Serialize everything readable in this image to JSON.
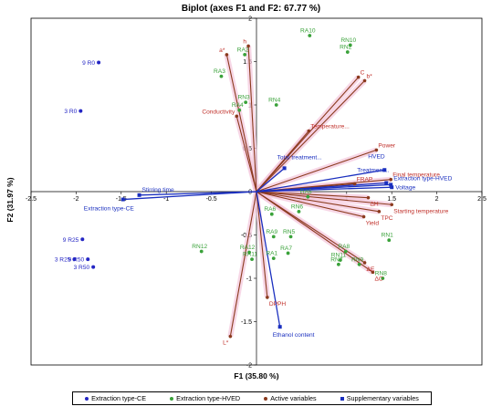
{
  "colors": {
    "ce": "#2426c4",
    "hved": "#3aa23a",
    "active": "#8b3a1e",
    "active_label": "#c0302a",
    "supp": "#1a2fbf",
    "halo": "#f4c6dc"
  },
  "chart_data": {
    "type": "scatter",
    "title": "Biplot (axes F1 and F2: 67.77 %)",
    "xlabel": "F1 (35.80 %)",
    "ylabel": "F2 (31.97 %)",
    "xlim": [
      -2.5,
      2.5
    ],
    "ylim": [
      -2,
      2
    ],
    "xticks": [
      "-2.5",
      "-2",
      "-1.5",
      "-1",
      "-0.5",
      "0",
      "0.5",
      "1",
      "1.5",
      "2",
      "2.5"
    ],
    "yticks": [
      "-2",
      "-1.5",
      "-1",
      "-0.5",
      "0",
      "0.5",
      "1",
      "1.5",
      "2"
    ],
    "grid": false,
    "legend_position": "bottom",
    "legend": [
      "Extraction type-CE",
      "Extraction type-HVED",
      "Active variables",
      "Supplementary variables"
    ],
    "observations_ce": [
      {
        "label": "9 R0",
        "x": -1.75,
        "y": 1.49
      },
      {
        "label": "3 R0",
        "x": -1.95,
        "y": 0.93
      },
      {
        "label": "9 R25",
        "x": -1.93,
        "y": -0.55
      },
      {
        "label": "3 R25",
        "x": -2.02,
        "y": -0.78
      },
      {
        "label": "9 R50",
        "x": -1.87,
        "y": -0.78
      },
      {
        "label": "3 R50",
        "x": -1.81,
        "y": -0.87
      }
    ],
    "observations_hved": [
      {
        "label": "RA10",
        "x": 0.59,
        "y": 1.8
      },
      {
        "label": "RN10",
        "x": 1.04,
        "y": 1.69
      },
      {
        "label": "RN2",
        "x": 1.01,
        "y": 1.61
      },
      {
        "label": "RA2",
        "x": -0.13,
        "y": 1.58
      },
      {
        "label": "RA3",
        "x": -0.39,
        "y": 1.33
      },
      {
        "label": "RN3",
        "x": -0.12,
        "y": 1.03
      },
      {
        "label": "RN4",
        "x": 0.22,
        "y": 1.0
      },
      {
        "label": "RA4",
        "x": -0.19,
        "y": 0.94
      },
      {
        "label": "RN1",
        "x": 1.47,
        "y": -0.56
      },
      {
        "label": "RA6",
        "x": 0.17,
        "y": -0.26
      },
      {
        "label": "RN6",
        "x": 0.47,
        "y": -0.23
      },
      {
        "label": "RA9",
        "x": 0.19,
        "y": -0.52
      },
      {
        "label": "RN5",
        "x": 0.38,
        "y": -0.52
      },
      {
        "label": "RA7",
        "x": 0.35,
        "y": -0.71
      },
      {
        "label": "RA1",
        "x": 0.19,
        "y": -0.77
      },
      {
        "label": "RA8",
        "x": 0.99,
        "y": -0.69
      },
      {
        "label": "RN11",
        "x": 0.93,
        "y": -0.79
      },
      {
        "label": "RN7",
        "x": 0.91,
        "y": -0.84
      },
      {
        "label": "RN9",
        "x": 1.14,
        "y": -0.84
      },
      {
        "label": "RN8",
        "x": 1.4,
        "y": -1.0
      },
      {
        "label": "RN12",
        "x": -0.61,
        "y": -0.69
      },
      {
        "label": "RA11",
        "x": -0.05,
        "y": -0.78
      },
      {
        "label": "RA12",
        "x": -0.08,
        "y": -0.7
      },
      {
        "label": "RA5",
        "x": 0.57,
        "y": -0.06
      }
    ],
    "active_variables": [
      {
        "label": "a*",
        "x": -0.33,
        "y": 1.58
      },
      {
        "label": "h",
        "x": -0.09,
        "y": 1.68
      },
      {
        "label": "Conductivity",
        "x": -0.22,
        "y": 0.87
      },
      {
        "label": "C",
        "x": 1.13,
        "y": 1.32
      },
      {
        "label": "b*",
        "x": 1.2,
        "y": 1.28
      },
      {
        "label": "Temperature...",
        "x": 0.58,
        "y": 0.7
      },
      {
        "label": "Power",
        "x": 1.33,
        "y": 0.48
      },
      {
        "label": "Final temperature",
        "x": 1.49,
        "y": 0.14
      },
      {
        "label": "FRAP",
        "x": 1.09,
        "y": 0.09
      },
      {
        "label": "ΔH",
        "x": 1.24,
        "y": -0.07
      },
      {
        "label": "Starting temperature",
        "x": 1.5,
        "y": -0.15
      },
      {
        "label": "TPC",
        "x": 1.36,
        "y": -0.23
      },
      {
        "label": "Yield",
        "x": 1.19,
        "y": -0.29
      },
      {
        "label": "ΔE",
        "x": 1.2,
        "y": -0.82
      },
      {
        "label": "ΔC",
        "x": 1.29,
        "y": -0.93
      },
      {
        "label": "DPPH",
        "x": 0.12,
        "y": -1.22
      },
      {
        "label": "L*",
        "x": -0.29,
        "y": -1.67
      }
    ],
    "supplementary_variables": [
      {
        "label": "HVED",
        "x": 1.42,
        "y": 0.25
      },
      {
        "label": "Treatment...",
        "x": 1.44,
        "y": 0.1
      },
      {
        "label": "Extraction type-HVED",
        "x": 1.49,
        "y": 0.08
      },
      {
        "label": "Voltage",
        "x": 1.5,
        "y": 0.05
      },
      {
        "label": "Total treatment...",
        "x": 0.31,
        "y": 0.27
      },
      {
        "label": "Stirring time",
        "x": -1.3,
        "y": -0.04
      },
      {
        "label": "Extraction type-CE",
        "x": -1.48,
        "y": -0.09
      },
      {
        "label": "Ethanol content",
        "x": 0.26,
        "y": -1.56
      }
    ]
  }
}
